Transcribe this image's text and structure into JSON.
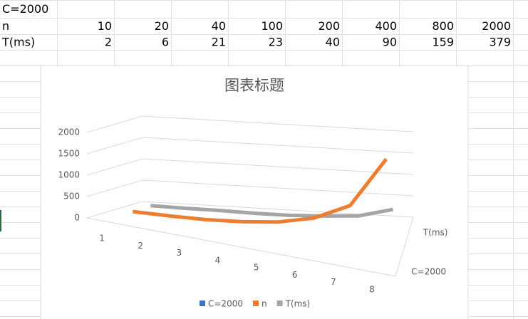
{
  "sheet": {
    "rows": [
      [
        "C=2000"
      ],
      [
        "n",
        10,
        20,
        40,
        100,
        200,
        400,
        800,
        2000
      ],
      [
        "T(ms)",
        2,
        6,
        21,
        23,
        40,
        90,
        159,
        379
      ]
    ]
  },
  "chart_data": {
    "type": "line3d",
    "title": "图表标题",
    "categories": [
      1,
      2,
      3,
      4,
      5,
      6,
      7,
      8
    ],
    "series": [
      {
        "name": "C=2000",
        "color": "#4472c4",
        "values": [
          null,
          null,
          null,
          null,
          null,
          null,
          null,
          null
        ]
      },
      {
        "name": "n",
        "color": "#ed7d31",
        "values": [
          10,
          20,
          40,
          100,
          200,
          400,
          800,
          2000
        ]
      },
      {
        "name": "T(ms)",
        "color": "#a5a5a5",
        "values": [
          2,
          6,
          21,
          23,
          40,
          90,
          159,
          379
        ]
      }
    ],
    "ylim": [
      0,
      2000
    ],
    "yticks": [
      0,
      500,
      1000,
      1500,
      2000
    ],
    "grid": true
  }
}
